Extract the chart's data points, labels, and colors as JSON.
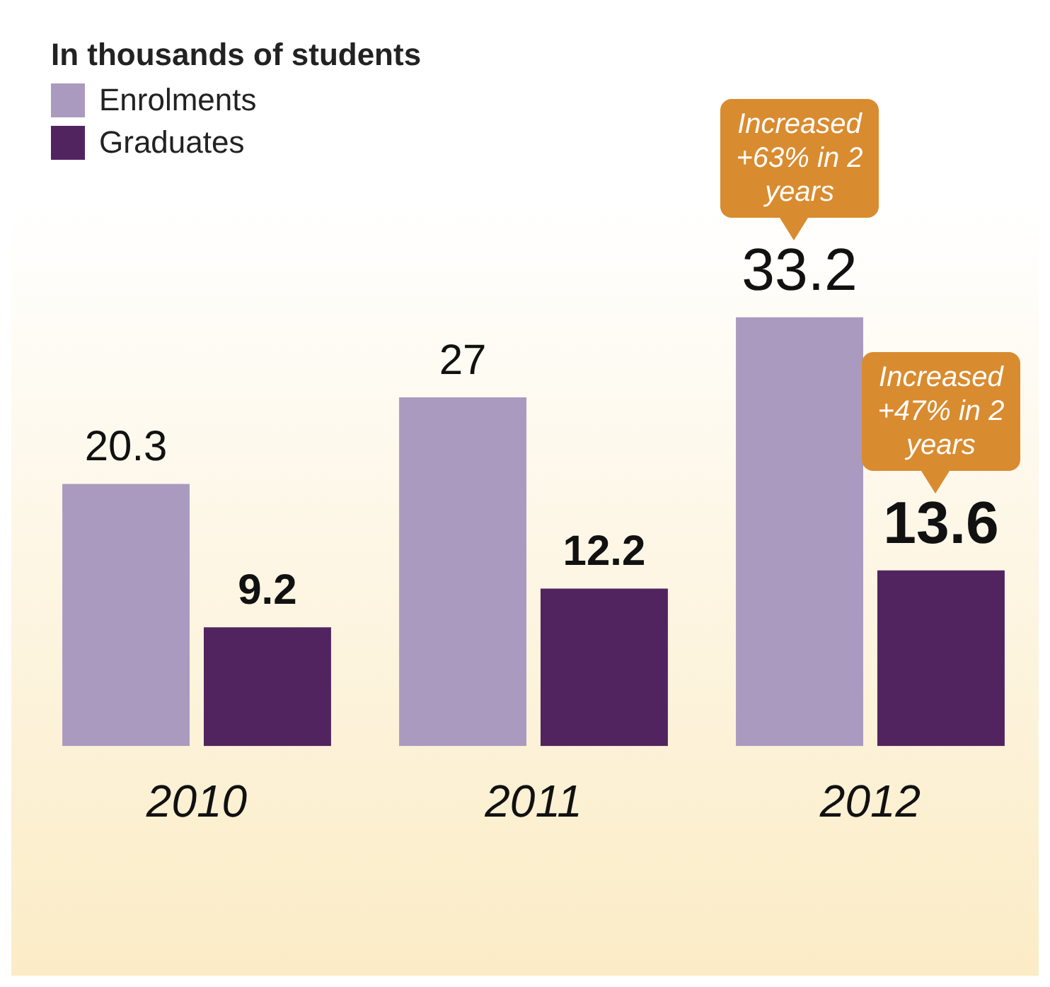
{
  "chart_data": {
    "type": "bar",
    "legend_title": "In thousands of students",
    "categories": [
      "2010",
      "2011",
      "2012"
    ],
    "series": [
      {
        "name": "Enrolments",
        "color": "#ab9abf",
        "values": [
          20.3,
          27,
          33.2
        ]
      },
      {
        "name": "Graduates",
        "color": "#52245f",
        "values": [
          9.2,
          12.2,
          13.6
        ]
      }
    ],
    "data_labels": true,
    "legend": "top left",
    "grid": false,
    "tick_labels": "x",
    "annotations": [
      "Increased +63% in 2 years",
      "Increased +47% in 2 years"
    ]
  }
}
